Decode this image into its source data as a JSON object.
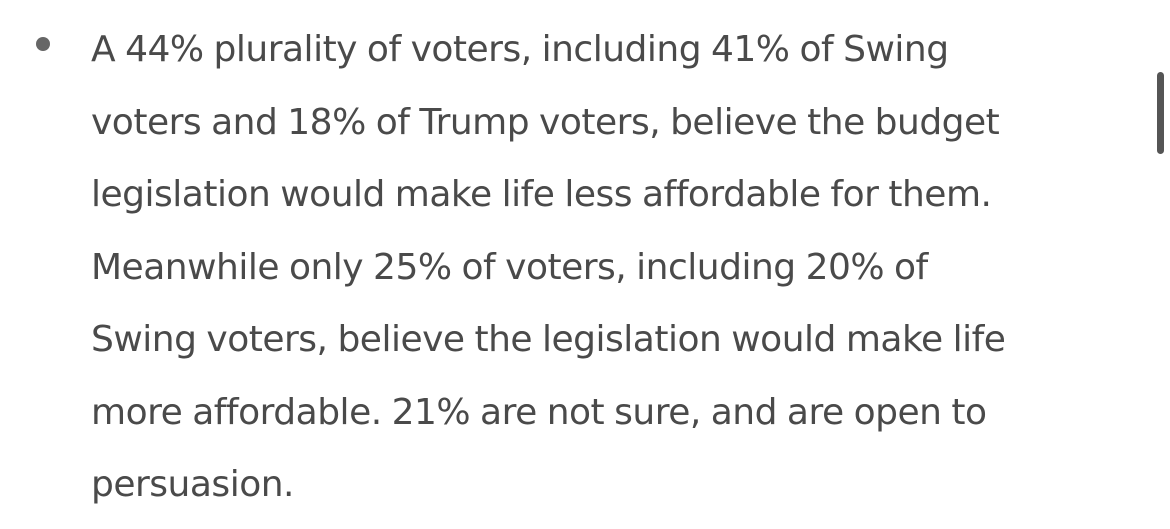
{
  "list": {
    "items": [
      {
        "lines": [
          "A 44% plurality of voters, including 41% of Swing",
          "voters and 18% of Trump voters, believe the budget",
          "legislation would make life less affordable for them.",
          "Meanwhile only 25% of voters, including 20% of",
          "Swing voters, believe the legislation would make life",
          "more affordable. 21% are not sure, and are open to",
          "persuasion."
        ]
      }
    ]
  },
  "colors": {
    "text": "#4a4a4a",
    "bullet": "#666666",
    "scrollbar_thumb": "#555555",
    "background": "#ffffff"
  }
}
